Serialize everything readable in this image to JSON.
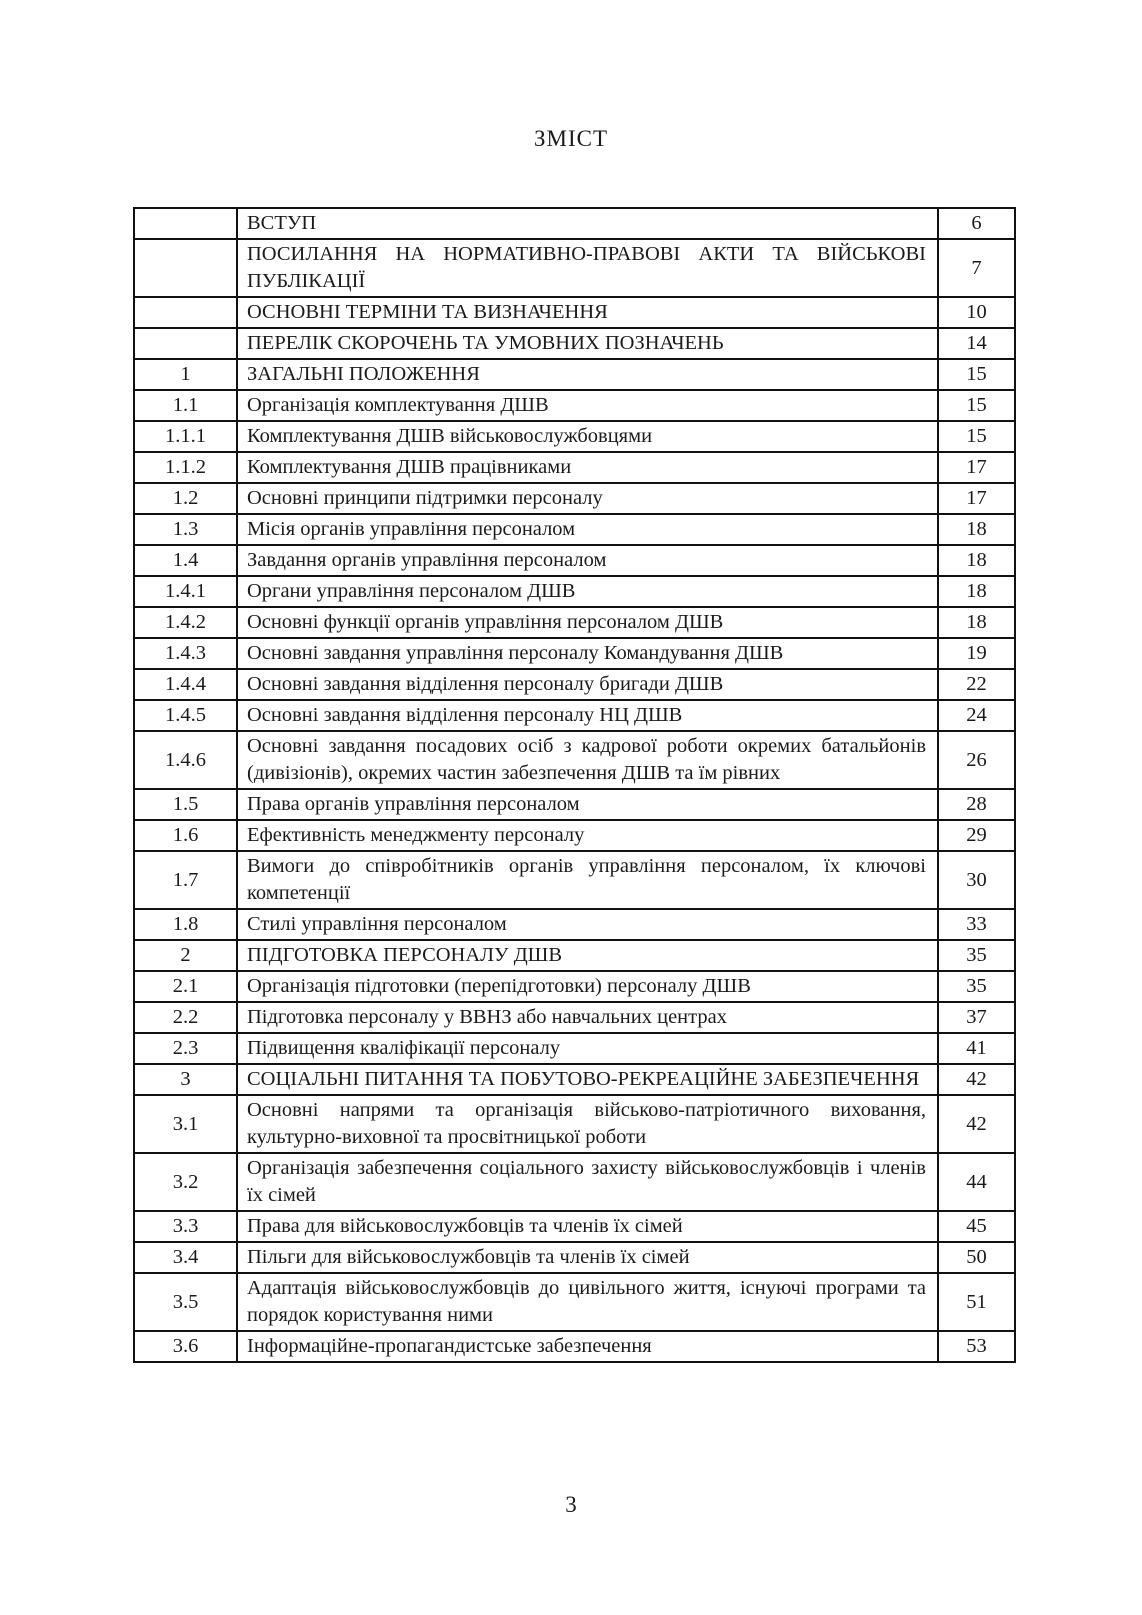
{
  "document": {
    "title": "ЗМІСТ",
    "page_number": "3"
  },
  "colors": {
    "text": "#1b1b1b",
    "border": "#111111",
    "background": "#ffffff"
  },
  "toc": {
    "rows": [
      {
        "num": "",
        "title": "ВСТУП",
        "page": "6"
      },
      {
        "num": "",
        "title": "ПОСИЛАННЯ НА НОРМАТИВНО-ПРАВОВІ АКТИ ТА ВІЙСЬКОВІ ПУБЛІКАЦІЇ",
        "page": "7"
      },
      {
        "num": "",
        "title": "ОСНОВНІ ТЕРМІНИ ТА ВИЗНАЧЕННЯ",
        "page": "10"
      },
      {
        "num": "",
        "title": "ПЕРЕЛІК СКОРОЧЕНЬ ТА УМОВНИХ ПОЗНАЧЕНЬ",
        "page": "14"
      },
      {
        "num": "1",
        "title": "ЗАГАЛЬНІ ПОЛОЖЕННЯ",
        "page": "15"
      },
      {
        "num": "1.1",
        "title": "Організація комплектування ДШВ",
        "page": "15"
      },
      {
        "num": "1.1.1",
        "title": "Комплектування ДШВ військовослужбовцями",
        "page": "15"
      },
      {
        "num": "1.1.2",
        "title": "Комплектування ДШВ працівниками",
        "page": "17"
      },
      {
        "num": "1.2",
        "title": "Основні принципи підтримки персоналу",
        "page": "17"
      },
      {
        "num": "1.3",
        "title": "Місія органів управління персоналом",
        "page": "18"
      },
      {
        "num": "1.4",
        "title": "Завдання органів управління персоналом",
        "page": "18"
      },
      {
        "num": "1.4.1",
        "title": "Органи управління персоналом ДШВ",
        "page": "18"
      },
      {
        "num": "1.4.2",
        "title": "Основні функції органів управління персоналом ДШВ",
        "page": "18"
      },
      {
        "num": "1.4.3",
        "title": "Основні завдання управління персоналу Командування ДШВ",
        "page": "19"
      },
      {
        "num": "1.4.4",
        "title": "Основні завдання відділення персоналу бригади ДШВ",
        "page": "22"
      },
      {
        "num": "1.4.5",
        "title": "Основні завдання відділення персоналу НЦ ДШВ",
        "page": "24"
      },
      {
        "num": "1.4.6",
        "title": "Основні завдання посадових осіб з кадрової роботи окремих батальйонів (дивізіонів), окремих частин забезпечення ДШВ та їм рівних",
        "page": "26"
      },
      {
        "num": "1.5",
        "title": "Права органів управління персоналом",
        "page": "28"
      },
      {
        "num": "1.6",
        "title": "Ефективність менеджменту персоналу",
        "page": "29"
      },
      {
        "num": "1.7",
        "title": "Вимоги до співробітників органів управління персоналом, їх ключові компетенції",
        "page": "30"
      },
      {
        "num": "1.8",
        "title": "Стилі управління персоналом",
        "page": "33"
      },
      {
        "num": "2",
        "title": "ПІДГОТОВКА ПЕРСОНАЛУ ДШВ",
        "page": "35"
      },
      {
        "num": "2.1",
        "title": "Організація підготовки (перепідготовки) персоналу ДШВ",
        "page": "35"
      },
      {
        "num": "2.2",
        "title": "Підготовка персоналу у ВВНЗ або навчальних центрах",
        "page": "37"
      },
      {
        "num": "2.3",
        "title": "Підвищення кваліфікації персоналу",
        "page": "41"
      },
      {
        "num": "3",
        "title": "СОЦІАЛЬНІ ПИТАННЯ ТА ПОБУТОВО-РЕКРЕАЦІЙНЕ ЗАБЕЗПЕЧЕННЯ",
        "page": "42"
      },
      {
        "num": "3.1",
        "title": "Основні напрями та організація військово-патріотичного виховання, культурно-виховної та просвітницької роботи",
        "page": "42"
      },
      {
        "num": "3.2",
        "title": "Організація забезпечення соціального захисту військовослужбовців і членів їх сімей",
        "page": "44"
      },
      {
        "num": "3.3",
        "title": "Права для військовослужбовців та членів їх сімей",
        "page": "45"
      },
      {
        "num": "3.4",
        "title": "Пільги для військовослужбовців та членів їх сімей",
        "page": "50"
      },
      {
        "num": "3.5",
        "title": "Адаптація військовослужбовців до цивільного життя, існуючі програми та порядок користування ними",
        "page": "51"
      },
      {
        "num": "3.6",
        "title": "Інформаційне-пропагандистське забезпечення",
        "page": "53"
      }
    ]
  }
}
